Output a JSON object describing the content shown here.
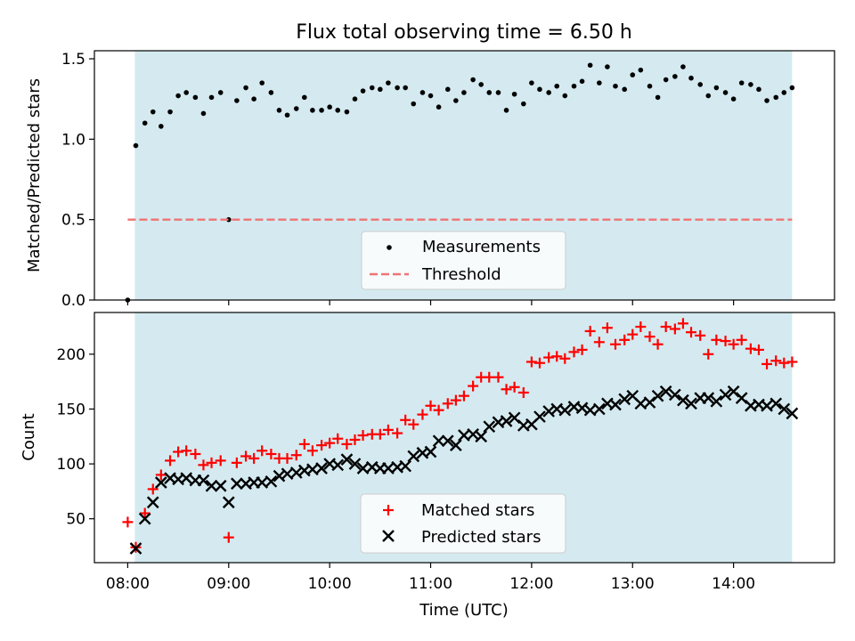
{
  "chart_data": [
    {
      "type": "scatter",
      "title": "Flux total observing time = 6.50 h",
      "ylabel": "Matched/Predicted stars",
      "xlabel": "",
      "ylim": [
        0,
        1.55
      ],
      "yticks": [
        0.0,
        0.5,
        1.0,
        1.5
      ],
      "ytick_labels": [
        "0.0",
        "0.5",
        "1.0",
        "1.5"
      ],
      "xlim_hours": [
        7.67,
        15.0
      ],
      "observing_window_hours": [
        8.07,
        14.58
      ],
      "observing_window_color": "#d4eaf0",
      "legend_location": "bottom-center",
      "series": [
        {
          "name": "Measurements",
          "marker": "dot",
          "color": "#000000",
          "x": [
            8.0,
            8.08,
            8.17,
            8.25,
            8.33,
            8.42,
            8.5,
            8.58,
            8.67,
            8.75,
            8.83,
            8.92,
            9.0,
            9.08,
            9.17,
            9.25,
            9.33,
            9.42,
            9.5,
            9.58,
            9.67,
            9.75,
            9.83,
            9.92,
            10.0,
            10.08,
            10.17,
            10.25,
            10.33,
            10.42,
            10.5,
            10.58,
            10.67,
            10.75,
            10.83,
            10.92,
            11.0,
            11.08,
            11.17,
            11.25,
            11.33,
            11.42,
            11.5,
            11.58,
            11.67,
            11.75,
            11.83,
            11.92,
            12.0,
            12.08,
            12.17,
            12.25,
            12.33,
            12.42,
            12.5,
            12.58,
            12.67,
            12.75,
            12.83,
            12.92,
            13.0,
            13.08,
            13.17,
            13.25,
            13.33,
            13.42,
            13.5,
            13.58,
            13.67,
            13.75,
            13.83,
            13.92,
            14.0,
            14.08,
            14.17,
            14.25,
            14.33,
            14.42,
            14.5,
            14.58
          ],
          "values": [
            0.0,
            0.96,
            1.1,
            1.17,
            1.08,
            1.17,
            1.27,
            1.29,
            1.26,
            1.16,
            1.26,
            1.29,
            0.5,
            1.24,
            1.32,
            1.25,
            1.35,
            1.29,
            1.18,
            1.15,
            1.19,
            1.26,
            1.18,
            1.18,
            1.2,
            1.18,
            1.17,
            1.25,
            1.3,
            1.32,
            1.31,
            1.35,
            1.32,
            1.32,
            1.22,
            1.29,
            1.27,
            1.2,
            1.31,
            1.24,
            1.29,
            1.37,
            1.34,
            1.29,
            1.29,
            1.18,
            1.28,
            1.22,
            1.35,
            1.31,
            1.29,
            1.33,
            1.27,
            1.33,
            1.36,
            1.46,
            1.35,
            1.45,
            1.33,
            1.31,
            1.4,
            1.43,
            1.33,
            1.26,
            1.37,
            1.39,
            1.45,
            1.38,
            1.34,
            1.27,
            1.32,
            1.29,
            1.25,
            1.35,
            1.34,
            1.31,
            1.24,
            1.26,
            1.29,
            1.32
          ]
        },
        {
          "name": "Threshold",
          "marker": "dashed-line",
          "color": "#ef7373",
          "x": [
            8.0,
            14.58
          ],
          "values": [
            0.5,
            0.5
          ]
        }
      ]
    },
    {
      "type": "scatter",
      "title": "",
      "ylabel": "Count",
      "xlabel": "Time (UTC)",
      "ylim": [
        10,
        238
      ],
      "yticks": [
        50,
        100,
        150,
        200
      ],
      "ytick_labels": [
        "50",
        "100",
        "150",
        "200"
      ],
      "xlim_hours": [
        7.67,
        15.0
      ],
      "xticks_hours": [
        8,
        9,
        10,
        11,
        12,
        13,
        14
      ],
      "xtick_labels": [
        "08:00",
        "09:00",
        "10:00",
        "11:00",
        "12:00",
        "13:00",
        "14:00"
      ],
      "observing_window_hours": [
        8.07,
        14.58
      ],
      "observing_window_color": "#d4eaf0",
      "legend_location": "bottom-center",
      "series": [
        {
          "name": "Matched stars",
          "marker": "plus",
          "color": "#ff0000",
          "x": [
            8.0,
            8.08,
            8.17,
            8.25,
            8.33,
            8.42,
            8.5,
            8.58,
            8.67,
            8.75,
            8.83,
            8.92,
            9.0,
            9.08,
            9.17,
            9.25,
            9.33,
            9.42,
            9.5,
            9.58,
            9.67,
            9.75,
            9.83,
            9.92,
            10.0,
            10.08,
            10.17,
            10.25,
            10.33,
            10.42,
            10.5,
            10.58,
            10.67,
            10.75,
            10.83,
            10.92,
            11.0,
            11.08,
            11.17,
            11.25,
            11.33,
            11.42,
            11.5,
            11.58,
            11.67,
            11.75,
            11.83,
            11.92,
            12.0,
            12.08,
            12.17,
            12.25,
            12.33,
            12.42,
            12.5,
            12.58,
            12.67,
            12.75,
            12.83,
            12.92,
            13.0,
            13.08,
            13.17,
            13.25,
            13.33,
            13.42,
            13.5,
            13.58,
            13.67,
            13.75,
            13.83,
            13.92,
            14.0,
            14.08,
            14.17,
            14.25,
            14.33,
            14.42,
            14.5,
            14.58
          ],
          "values": [
            47,
            24,
            55,
            77,
            90,
            103,
            111,
            112,
            109,
            99,
            101,
            103,
            33,
            101,
            107,
            105,
            112,
            109,
            105,
            105,
            108,
            118,
            112,
            117,
            119,
            123,
            118,
            122,
            126,
            127,
            127,
            131,
            128,
            140,
            136,
            145,
            153,
            149,
            155,
            158,
            162,
            171,
            179,
            179,
            179,
            168,
            170,
            165,
            193,
            192,
            197,
            198,
            196,
            202,
            204,
            221,
            211,
            224,
            209,
            213,
            218,
            225,
            216,
            209,
            225,
            223,
            228,
            220,
            217,
            200,
            213,
            212,
            209,
            213,
            205,
            204,
            191,
            194,
            192,
            193
          ]
        },
        {
          "name": "Predicted stars",
          "marker": "x",
          "color": "#000000",
          "x": [
            8.08,
            8.17,
            8.25,
            8.33,
            8.42,
            8.5,
            8.58,
            8.67,
            8.75,
            8.83,
            8.92,
            9.0,
            9.08,
            9.17,
            9.25,
            9.33,
            9.42,
            9.5,
            9.58,
            9.67,
            9.75,
            9.83,
            9.92,
            10.0,
            10.08,
            10.17,
            10.25,
            10.33,
            10.42,
            10.5,
            10.58,
            10.67,
            10.75,
            10.83,
            10.92,
            11.0,
            11.08,
            11.17,
            11.25,
            11.33,
            11.42,
            11.5,
            11.58,
            11.67,
            11.75,
            11.83,
            11.92,
            12.0,
            12.08,
            12.17,
            12.25,
            12.33,
            12.42,
            12.5,
            12.58,
            12.67,
            12.75,
            12.83,
            12.92,
            13.0,
            13.08,
            13.17,
            13.25,
            13.33,
            13.42,
            13.5,
            13.58,
            13.67,
            13.75,
            13.83,
            13.92,
            14.0,
            14.08,
            14.17,
            14.25,
            14.33,
            14.42,
            14.5,
            14.58
          ],
          "values": [
            23,
            50,
            65,
            83,
            87,
            86,
            87,
            85,
            85,
            80,
            80,
            65,
            82,
            82,
            83,
            83,
            84,
            89,
            91,
            92,
            94,
            95,
            96,
            100,
            99,
            104,
            100,
            96,
            97,
            96,
            96,
            97,
            98,
            107,
            110,
            111,
            121,
            121,
            117,
            126,
            127,
            125,
            134,
            138,
            139,
            142,
            135,
            136,
            143,
            148,
            150,
            149,
            152,
            151,
            149,
            150,
            155,
            154,
            159,
            162,
            155,
            156,
            162,
            166,
            163,
            158,
            155,
            160,
            160,
            157,
            163,
            166,
            160,
            153,
            154,
            153,
            155,
            150,
            146
          ]
        }
      ]
    }
  ]
}
